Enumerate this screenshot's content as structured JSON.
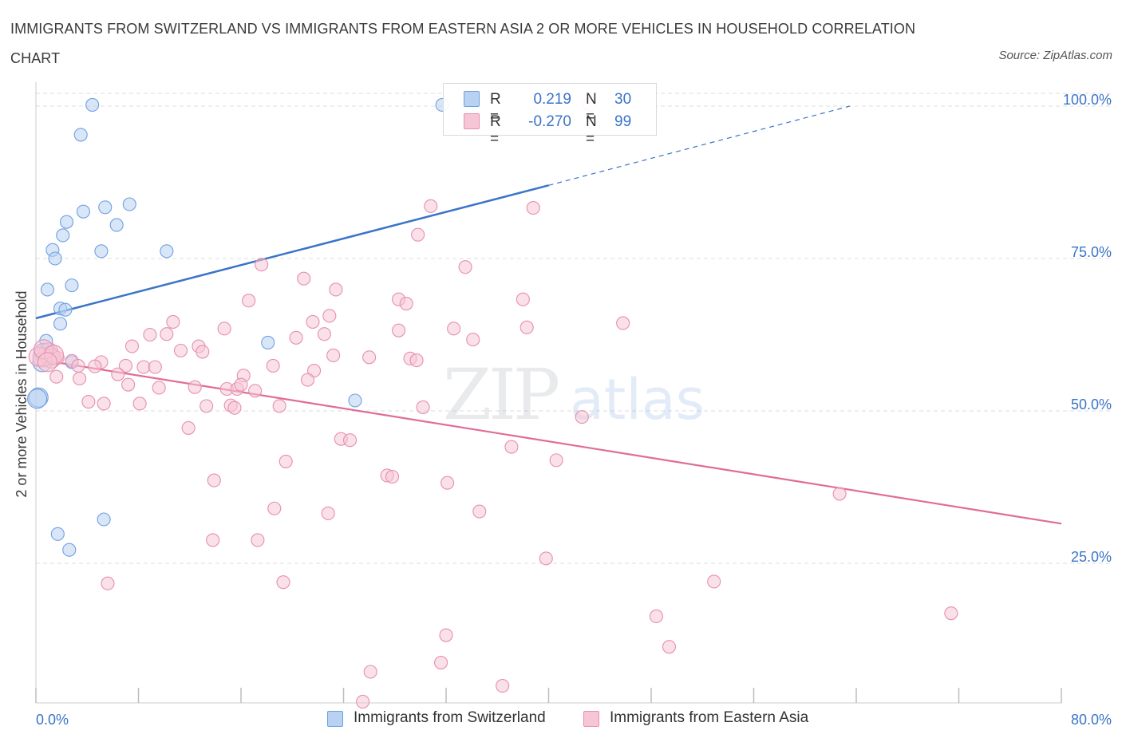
{
  "title": "IMMIGRANTS FROM SWITZERLAND VS IMMIGRANTS FROM EASTERN ASIA 2 OR MORE VEHICLES IN HOUSEHOLD CORRELATION CHART",
  "source": "Source: ZipAtlas.com",
  "watermark": {
    "zip": "ZIP",
    "atlas": "atlas"
  },
  "legend": {
    "rows": [
      {
        "r_label": "R =",
        "r_value": "0.219",
        "n_label": "N =",
        "n_value": "30"
      },
      {
        "r_label": "R =",
        "r_value": "-0.270",
        "n_label": "N =",
        "n_value": "99"
      }
    ]
  },
  "chart_data": {
    "type": "scatter",
    "title": "IMMIGRANTS FROM SWITZERLAND VS IMMIGRANTS FROM EASTERN ASIA 2 OR MORE VEHICLES IN HOUSEHOLD CORRELATION CHART",
    "xlabel": "",
    "ylabel": "2 or more Vehicles in Household",
    "xlim": [
      0,
      80
    ],
    "ylim": [
      0,
      100
    ],
    "x_tick_labels": [
      "0.0%",
      "80.0%"
    ],
    "y_ticks": [
      25,
      50,
      75,
      100
    ],
    "y_tick_labels": [
      "25.0%",
      "50.0%",
      "75.0%",
      "100.0%"
    ],
    "grid": true,
    "legend_position": "top-center",
    "series": [
      {
        "name": "Immigrants from Switzerland",
        "color": "#6fa0e0",
        "fill": "#b9d2f3",
        "r": 0.219,
        "n": 30,
        "trend": {
          "x0": 0,
          "y0": 65.2,
          "x1": 40,
          "y1": 87.0,
          "dashed_to_x": 63.5,
          "dashed_to_y": 100.0,
          "color": "#3a74c8"
        },
        "points": [
          [
            4.4,
            100.2
          ],
          [
            3.5,
            95.3
          ],
          [
            2.4,
            81.0
          ],
          [
            3.7,
            82.7
          ],
          [
            5.4,
            83.4
          ],
          [
            7.3,
            83.9
          ],
          [
            6.3,
            80.5
          ],
          [
            2.1,
            78.8
          ],
          [
            1.3,
            76.4
          ],
          [
            1.5,
            75.0
          ],
          [
            5.1,
            76.2
          ],
          [
            10.2,
            76.2
          ],
          [
            0.9,
            69.9
          ],
          [
            2.8,
            70.6
          ],
          [
            1.9,
            66.8
          ],
          [
            2.3,
            66.6
          ],
          [
            1.9,
            64.3
          ],
          [
            0.8,
            61.5
          ],
          [
            0.6,
            59.5
          ],
          [
            1.1,
            59.0
          ],
          [
            0.5,
            58.0
          ],
          [
            2.8,
            58.0
          ],
          [
            18.1,
            61.2
          ],
          [
            0.2,
            52.2
          ],
          [
            24.9,
            51.7
          ],
          [
            5.3,
            32.2
          ],
          [
            1.7,
            29.8
          ],
          [
            2.6,
            27.2
          ],
          [
            31.7,
            100.2
          ],
          [
            0.1,
            52.0
          ]
        ]
      },
      {
        "name": "Immigrants from Eastern Asia",
        "color": "#e78fae",
        "fill": "#f6c6d6",
        "r": -0.27,
        "n": 99,
        "trend": {
          "x0": 0,
          "y0": 58.5,
          "x1": 80,
          "y1": 31.5,
          "color": "#e06c97"
        },
        "points": [
          [
            43.2,
            100.2
          ],
          [
            30.8,
            83.6
          ],
          [
            38.8,
            83.3
          ],
          [
            29.8,
            78.9
          ],
          [
            20.9,
            71.7
          ],
          [
            23.4,
            69.9
          ],
          [
            33.5,
            73.6
          ],
          [
            17.6,
            74.0
          ],
          [
            16.6,
            68.1
          ],
          [
            28.3,
            68.3
          ],
          [
            28.9,
            67.6
          ],
          [
            22.9,
            65.6
          ],
          [
            38.0,
            68.3
          ],
          [
            21.6,
            64.6
          ],
          [
            10.7,
            64.6
          ],
          [
            14.7,
            63.5
          ],
          [
            32.6,
            63.5
          ],
          [
            38.3,
            63.7
          ],
          [
            45.8,
            64.4
          ],
          [
            10.2,
            62.6
          ],
          [
            8.9,
            62.5
          ],
          [
            20.3,
            62.0
          ],
          [
            22.5,
            62.6
          ],
          [
            28.3,
            63.2
          ],
          [
            34.1,
            61.7
          ],
          [
            7.5,
            60.6
          ],
          [
            12.7,
            60.6
          ],
          [
            11.3,
            59.9
          ],
          [
            13.0,
            59.7
          ],
          [
            23.2,
            59.1
          ],
          [
            26.0,
            58.8
          ],
          [
            29.2,
            58.6
          ],
          [
            29.7,
            58.3
          ],
          [
            2.8,
            58.2
          ],
          [
            3.3,
            57.4
          ],
          [
            5.1,
            58.0
          ],
          [
            7.0,
            57.4
          ],
          [
            8.4,
            57.2
          ],
          [
            9.3,
            57.2
          ],
          [
            18.5,
            57.4
          ],
          [
            21.7,
            56.6
          ],
          [
            1.0,
            59.6
          ],
          [
            1.2,
            58.6
          ],
          [
            0.5,
            58.8
          ],
          [
            1.7,
            58.7
          ],
          [
            4.6,
            57.3
          ],
          [
            6.4,
            56.0
          ],
          [
            16.2,
            55.8
          ],
          [
            1.6,
            55.6
          ],
          [
            3.4,
            55.3
          ],
          [
            21.2,
            55.1
          ],
          [
            7.2,
            54.3
          ],
          [
            9.6,
            53.8
          ],
          [
            12.4,
            53.9
          ],
          [
            14.9,
            53.6
          ],
          [
            15.7,
            53.6
          ],
          [
            16.0,
            54.3
          ],
          [
            17.1,
            53.3
          ],
          [
            4.1,
            51.5
          ],
          [
            5.3,
            51.2
          ],
          [
            8.1,
            51.2
          ],
          [
            13.3,
            50.8
          ],
          [
            15.2,
            50.9
          ],
          [
            15.5,
            50.5
          ],
          [
            19.0,
            50.8
          ],
          [
            30.2,
            50.6
          ],
          [
            42.6,
            49.0
          ],
          [
            11.9,
            47.2
          ],
          [
            23.8,
            45.4
          ],
          [
            24.5,
            45.2
          ],
          [
            37.1,
            44.1
          ],
          [
            40.6,
            41.9
          ],
          [
            19.5,
            41.7
          ],
          [
            13.9,
            38.6
          ],
          [
            27.4,
            39.4
          ],
          [
            27.8,
            39.2
          ],
          [
            32.1,
            38.2
          ],
          [
            62.7,
            36.4
          ],
          [
            18.6,
            34.0
          ],
          [
            22.8,
            33.2
          ],
          [
            34.6,
            33.5
          ],
          [
            13.8,
            28.8
          ],
          [
            17.3,
            28.8
          ],
          [
            39.8,
            25.8
          ],
          [
            5.6,
            21.7
          ],
          [
            19.3,
            21.9
          ],
          [
            52.9,
            22.0
          ],
          [
            48.4,
            16.3
          ],
          [
            71.4,
            16.8
          ],
          [
            32.0,
            13.2
          ],
          [
            49.4,
            11.3
          ],
          [
            26.1,
            7.2
          ],
          [
            31.6,
            8.7
          ],
          [
            36.4,
            4.9
          ],
          [
            25.5,
            2.3
          ],
          [
            0.2,
            58.9
          ],
          [
            0.6,
            60.1
          ],
          [
            1.4,
            59.2
          ],
          [
            0.9,
            58.0
          ]
        ]
      }
    ]
  }
}
